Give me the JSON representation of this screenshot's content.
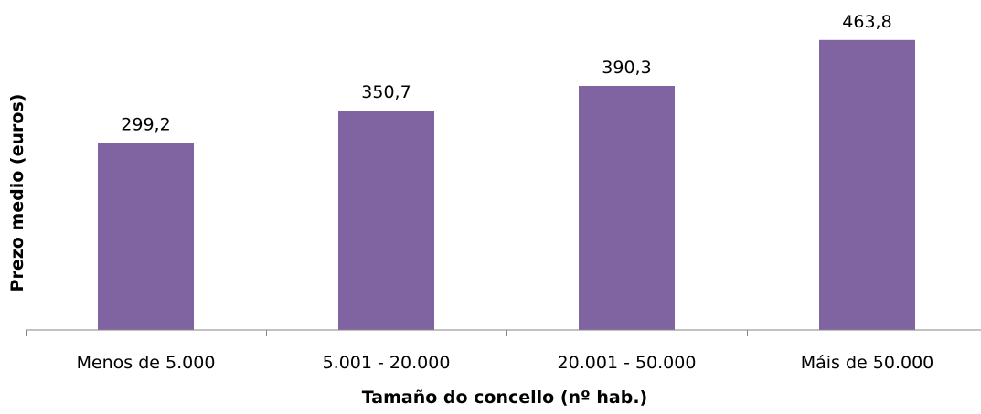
{
  "chart_data": {
    "type": "bar",
    "title": "",
    "xlabel": "Tamaño do concello (nº hab.)",
    "ylabel": "Prezo medio (euros)",
    "categories": [
      "Menos de 5.000",
      "5.001 - 20.000",
      "20.001 - 50.000",
      "Máis de 50.000"
    ],
    "values": [
      299.2,
      350.7,
      390.3,
      463.8
    ],
    "value_labels": [
      "299,2",
      "350,7",
      "390,3",
      "463,8"
    ],
    "ylim": [
      0,
      500
    ],
    "grid": false,
    "legend": "none",
    "colors": {
      "bar": "#8064a2",
      "axis": "#868686",
      "text": "#000000"
    }
  }
}
